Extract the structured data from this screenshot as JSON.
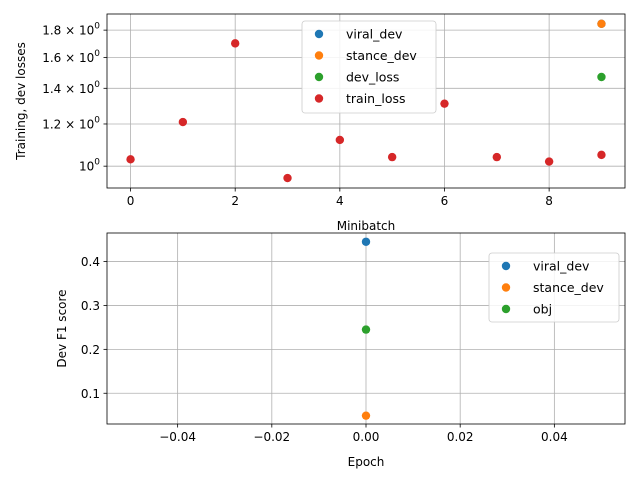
{
  "colors": {
    "blue": "#1f77b4",
    "orange": "#ff7f0e",
    "green": "#2ca02c",
    "red": "#d62728",
    "grid": "#b0b0b0"
  },
  "chart_data": [
    {
      "type": "scatter",
      "xlabel": "Minibatch",
      "ylabel": "Training, dev losses",
      "yscale": "log",
      "xlim": [
        -0.45,
        9.45
      ],
      "ylim": [
        0.91,
        1.93
      ],
      "x_ticks": [
        0,
        2,
        4,
        6,
        8
      ],
      "x_tick_labels": [
        "0",
        "2",
        "4",
        "6",
        "8"
      ],
      "y_ticks": [
        1.0,
        1.2,
        1.4,
        1.6,
        1.8
      ],
      "y_tick_labels": [
        {
          "mantissa": "10",
          "exponent": "0"
        },
        {
          "mantissa": "1.2 × 10",
          "exponent": "0"
        },
        {
          "mantissa": "1.4 × 10",
          "exponent": "0"
        },
        {
          "mantissa": "1.6 × 10",
          "exponent": "0"
        },
        {
          "mantissa": "1.8 × 10",
          "exponent": "0"
        }
      ],
      "grid": true,
      "legend_position": "top-center",
      "series": [
        {
          "name": "viral_dev",
          "color": "blue",
          "points": [
            [
              9,
              1.85
            ]
          ]
        },
        {
          "name": "stance_dev",
          "color": "orange",
          "points": [
            [
              9,
              1.85
            ]
          ]
        },
        {
          "name": "dev_loss",
          "color": "green",
          "points": [
            [
              9,
              1.47
            ]
          ]
        },
        {
          "name": "train_loss",
          "color": "red",
          "points": [
            [
              0,
              1.03
            ],
            [
              1,
              1.21
            ],
            [
              2,
              1.7
            ],
            [
              3,
              0.95
            ],
            [
              4,
              1.12
            ],
            [
              5,
              1.04
            ],
            [
              6,
              1.31
            ],
            [
              7,
              1.04
            ],
            [
              8,
              1.02
            ],
            [
              9,
              1.05
            ]
          ]
        }
      ]
    },
    {
      "type": "scatter",
      "xlabel": "Epoch",
      "ylabel": "Dev F1 score",
      "xlim": [
        -0.055,
        0.055
      ],
      "ylim": [
        0.03,
        0.465
      ],
      "x_ticks": [
        -0.04,
        -0.02,
        0.0,
        0.02,
        0.04
      ],
      "x_tick_labels": [
        "−0.04",
        "−0.02",
        "0.00",
        "0.02",
        "0.04"
      ],
      "y_ticks": [
        0.1,
        0.2,
        0.3,
        0.4
      ],
      "y_tick_labels": [
        "0.1",
        "0.2",
        "0.3",
        "0.4"
      ],
      "grid": true,
      "legend_position": "top-right",
      "series": [
        {
          "name": "viral_dev",
          "color": "blue",
          "points": [
            [
              0,
              0.445
            ]
          ]
        },
        {
          "name": "stance_dev",
          "color": "orange",
          "points": [
            [
              0,
              0.049
            ]
          ]
        },
        {
          "name": "obj",
          "color": "green",
          "points": [
            [
              0,
              0.245
            ]
          ]
        }
      ]
    }
  ]
}
